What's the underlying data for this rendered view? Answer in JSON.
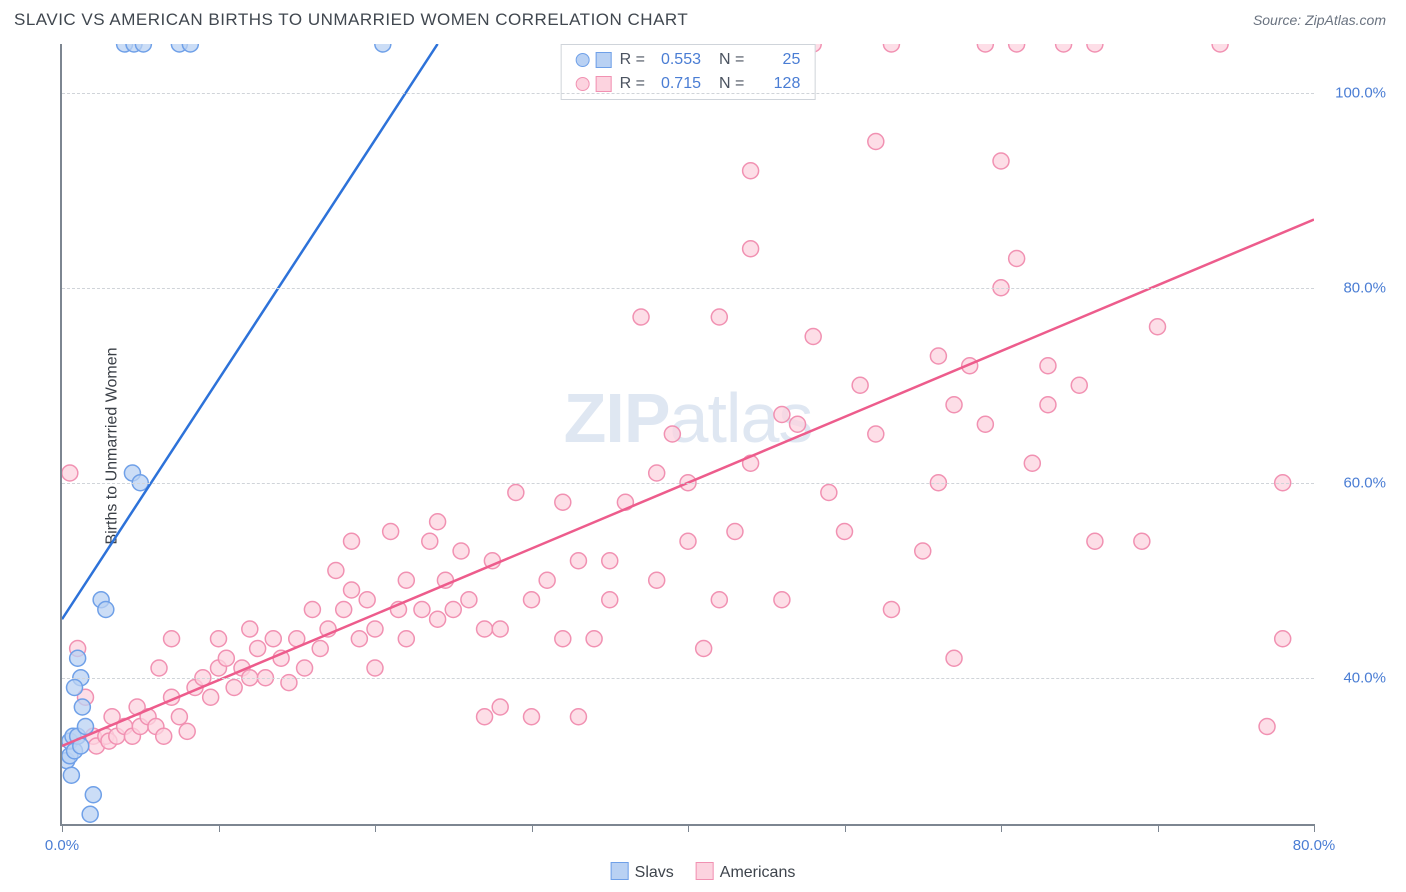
{
  "header": {
    "title": "SLAVIC VS AMERICAN BIRTHS TO UNMARRIED WOMEN CORRELATION CHART",
    "source_prefix": "Source: ",
    "source_name": "ZipAtlas.com"
  },
  "y_axis_label": "Births to Unmarried Women",
  "watermark": {
    "bold": "ZIP",
    "rest": "atlas"
  },
  "chart": {
    "type": "scatter",
    "xlim": [
      0,
      80
    ],
    "ylim": [
      25,
      105
    ],
    "background_color": "#ffffff",
    "grid_color": "#d0d4d9",
    "axis_color": "#7d8691",
    "marker_radius": 8,
    "marker_stroke_width": 1.5,
    "line_width": 2.5,
    "x_ticks": [
      0,
      10,
      20,
      30,
      40,
      50,
      60,
      70,
      80
    ],
    "x_tick_labels": {
      "0": "0.0%",
      "80": "80.0%"
    },
    "y_gridlines": [
      40,
      60,
      80,
      100
    ],
    "y_tick_labels": {
      "40": "40.0%",
      "60": "60.0%",
      "80": "80.0%",
      "100": "100.0%"
    },
    "series": [
      {
        "name": "Slavs",
        "fill_color": "#b9d1f3",
        "stroke_color": "#6fa0e8",
        "line_color": "#2d72d9",
        "stats": {
          "R": "0.553",
          "N": "25"
        },
        "trend": {
          "x1": 0,
          "y1": 46,
          "x2": 24,
          "y2": 105
        },
        "points": [
          [
            0.3,
            31.5
          ],
          [
            0.5,
            32
          ],
          [
            0.5,
            33.5
          ],
          [
            0.7,
            34
          ],
          [
            0.6,
            30
          ],
          [
            0.8,
            32.5
          ],
          [
            1,
            34
          ],
          [
            1.2,
            33
          ],
          [
            1.5,
            35
          ],
          [
            1.3,
            37
          ],
          [
            2,
            28
          ],
          [
            1.8,
            26
          ],
          [
            1,
            42
          ],
          [
            1.2,
            40
          ],
          [
            0.8,
            39
          ],
          [
            2.5,
            48
          ],
          [
            2.8,
            47
          ],
          [
            4.5,
            61
          ],
          [
            5,
            60
          ],
          [
            4,
            105
          ],
          [
            4.6,
            105
          ],
          [
            5.2,
            105
          ],
          [
            7.5,
            105
          ],
          [
            8.2,
            105
          ],
          [
            20.5,
            105
          ]
        ]
      },
      {
        "name": "Americans",
        "fill_color": "#fcd3df",
        "stroke_color": "#f191b2",
        "line_color": "#ed5c8c",
        "stats": {
          "R": "0.715",
          "N": "128"
        },
        "trend": {
          "x1": 0,
          "y1": 33,
          "x2": 80,
          "y2": 87
        },
        "points": [
          [
            0.5,
            61
          ],
          [
            1,
            43
          ],
          [
            1.5,
            38
          ],
          [
            2,
            34
          ],
          [
            2.2,
            33
          ],
          [
            2.8,
            34
          ],
          [
            3,
            33.5
          ],
          [
            3.5,
            34
          ],
          [
            3.2,
            36
          ],
          [
            4,
            35
          ],
          [
            4.5,
            34
          ],
          [
            5,
            35
          ],
          [
            4.8,
            37
          ],
          [
            5.5,
            36
          ],
          [
            6,
            35
          ],
          [
            6.5,
            34
          ],
          [
            7,
            38
          ],
          [
            7.5,
            36
          ],
          [
            8,
            34.5
          ],
          [
            6.2,
            41
          ],
          [
            7,
            44
          ],
          [
            8.5,
            39
          ],
          [
            9,
            40
          ],
          [
            9.5,
            38
          ],
          [
            10,
            41
          ],
          [
            10,
            44
          ],
          [
            10.5,
            42
          ],
          [
            11,
            39
          ],
          [
            11.5,
            41
          ],
          [
            12,
            40
          ],
          [
            12,
            45
          ],
          [
            12.5,
            43
          ],
          [
            13,
            40
          ],
          [
            13.5,
            44
          ],
          [
            14,
            42
          ],
          [
            14.5,
            39.5
          ],
          [
            15,
            44
          ],
          [
            15.5,
            41
          ],
          [
            16,
            47
          ],
          [
            16.5,
            43
          ],
          [
            17,
            45
          ],
          [
            17.5,
            51
          ],
          [
            18,
            47
          ],
          [
            18.5,
            49
          ],
          [
            19,
            44
          ],
          [
            18.5,
            54
          ],
          [
            19.5,
            48
          ],
          [
            20,
            45
          ],
          [
            21,
            55
          ],
          [
            20,
            41
          ],
          [
            21.5,
            47
          ],
          [
            22,
            50
          ],
          [
            22,
            44
          ],
          [
            23,
            47
          ],
          [
            23.5,
            54
          ],
          [
            24,
            46
          ],
          [
            24.5,
            50
          ],
          [
            25,
            47
          ],
          [
            24,
            56
          ],
          [
            25.5,
            53
          ],
          [
            27,
            45
          ],
          [
            26,
            48
          ],
          [
            27,
            36
          ],
          [
            28,
            45
          ],
          [
            27.5,
            52
          ],
          [
            28,
            37
          ],
          [
            29,
            59
          ],
          [
            30,
            48
          ],
          [
            30,
            36
          ],
          [
            31,
            50
          ],
          [
            32,
            44
          ],
          [
            33,
            52
          ],
          [
            33,
            36
          ],
          [
            32,
            58
          ],
          [
            34,
            44
          ],
          [
            35,
            52
          ],
          [
            36,
            58
          ],
          [
            35,
            48
          ],
          [
            37,
            77
          ],
          [
            38,
            61
          ],
          [
            39,
            65
          ],
          [
            38,
            50
          ],
          [
            40,
            54
          ],
          [
            40,
            60
          ],
          [
            41,
            43
          ],
          [
            42,
            48
          ],
          [
            42,
            77
          ],
          [
            43,
            55
          ],
          [
            44,
            62
          ],
          [
            44,
            84
          ],
          [
            44,
            92
          ],
          [
            46,
            48
          ],
          [
            46,
            67
          ],
          [
            47,
            66
          ],
          [
            48,
            75
          ],
          [
            49,
            59
          ],
          [
            48,
            105
          ],
          [
            50,
            55
          ],
          [
            51,
            70
          ],
          [
            52,
            65
          ],
          [
            52,
            95
          ],
          [
            53,
            105
          ],
          [
            53,
            47
          ],
          [
            55,
            53
          ],
          [
            56,
            60
          ],
          [
            56,
            73
          ],
          [
            57,
            42
          ],
          [
            57,
            68
          ],
          [
            58,
            72
          ],
          [
            59,
            66
          ],
          [
            59,
            105
          ],
          [
            60,
            80
          ],
          [
            60,
            93
          ],
          [
            61,
            83
          ],
          [
            61,
            105
          ],
          [
            62,
            62
          ],
          [
            63,
            68
          ],
          [
            63,
            72
          ],
          [
            64,
            105
          ],
          [
            65,
            70
          ],
          [
            66,
            105
          ],
          [
            66,
            54
          ],
          [
            69,
            54
          ],
          [
            70,
            76
          ],
          [
            74,
            105
          ],
          [
            77,
            35
          ],
          [
            78,
            60
          ],
          [
            78,
            44
          ]
        ]
      }
    ]
  },
  "stats_box": {
    "r_label": "R =",
    "n_label": "N ="
  },
  "bottom_legend": {
    "items": [
      {
        "label": "Slavs",
        "fill": "#b9d1f3",
        "stroke": "#6fa0e8"
      },
      {
        "label": "Americans",
        "fill": "#fcd3df",
        "stroke": "#f191b2"
      }
    ]
  }
}
